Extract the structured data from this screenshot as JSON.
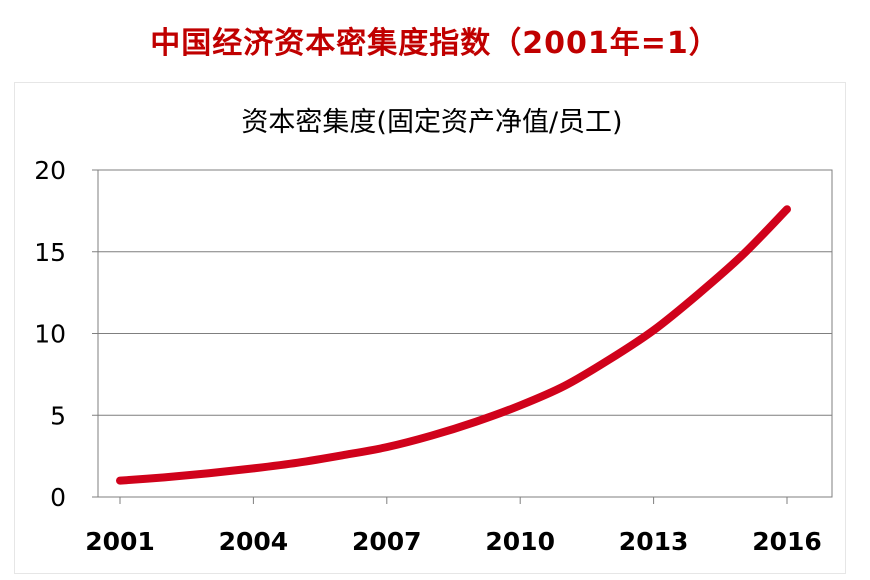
{
  "header": {
    "title": "中国经济资本密集度指数（2001年=1）"
  },
  "colors": {
    "title": "#c00000",
    "line": "#d0021b",
    "grid": "#7f7f7f",
    "text": "#000000"
  },
  "chart_data": {
    "type": "line",
    "title": "资本密集度(固定资产净值/员工)",
    "xlabel": "",
    "ylabel": "",
    "x_ticks": [
      "2001",
      "2004",
      "2007",
      "2010",
      "2013",
      "2016"
    ],
    "y_ticks": [
      "0",
      "5",
      "10",
      "15",
      "20"
    ],
    "xlim": [
      2001,
      2016
    ],
    "ylim": [
      0,
      20
    ],
    "grid": true,
    "series": [
      {
        "x": [
          2001,
          2002,
          2003,
          2004,
          2005,
          2006,
          2007,
          2008,
          2009,
          2010,
          2011,
          2012,
          2013,
          2014,
          2015,
          2016
        ],
        "values": [
          1.0,
          1.2,
          1.45,
          1.75,
          2.1,
          2.55,
          3.05,
          3.75,
          4.6,
          5.6,
          6.8,
          8.4,
          10.2,
          12.4,
          14.8,
          17.6
        ]
      }
    ]
  }
}
